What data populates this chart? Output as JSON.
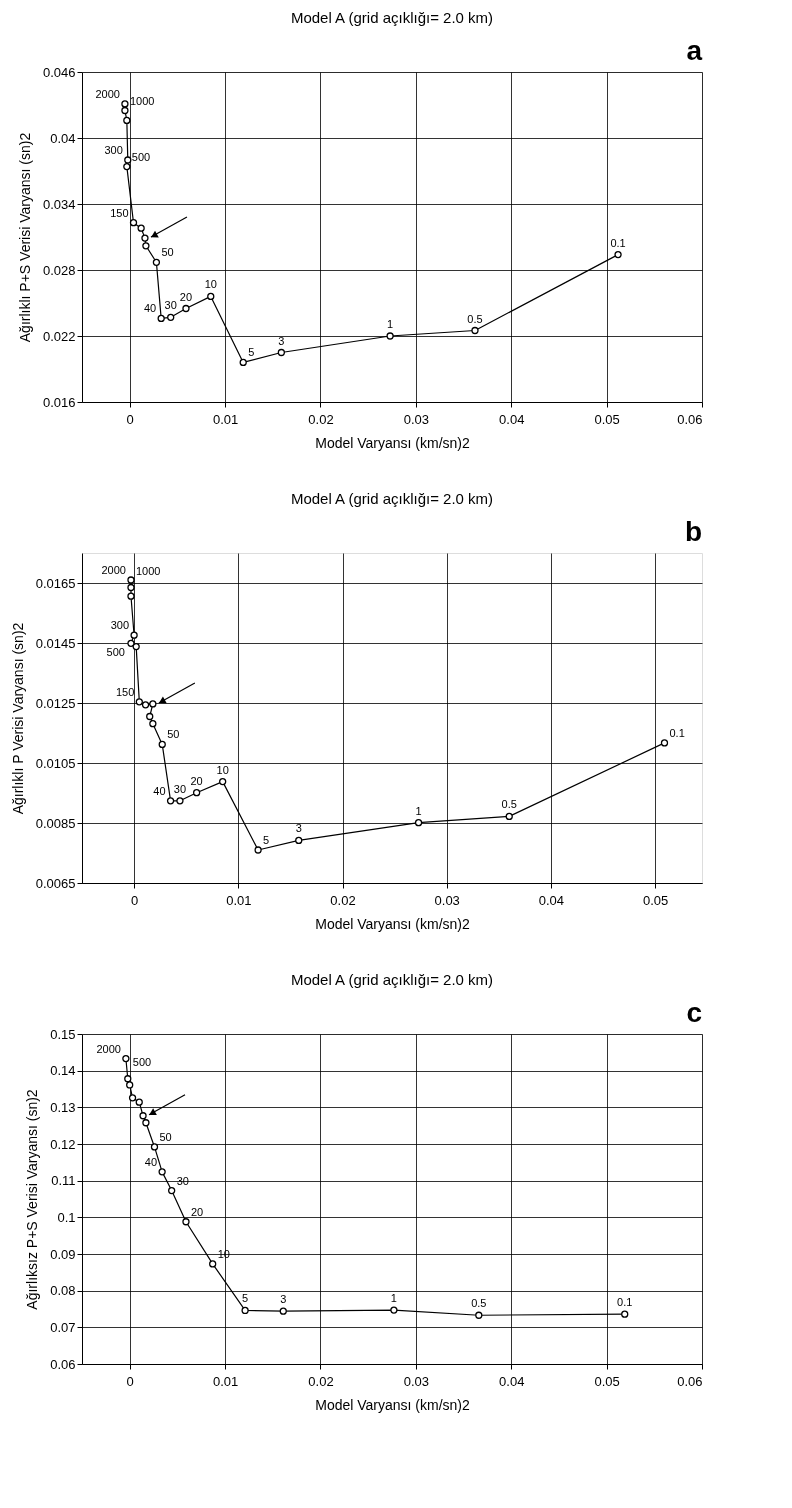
{
  "chart_data": [
    {
      "type": "line",
      "title": "Model A (grid açıklığı= 2.0 km)",
      "xlabel": "Model Varyansı (km/sn)2",
      "ylabel": "Ağırlıklı P+S Verisi Varyansı (sn)2",
      "series": [
        {
          "color": "#000000",
          "x": [
            -0.0005,
            -0.0005,
            -0.0003,
            -0.0002,
            -0.0003,
            0.0004,
            0.0012,
            0.0016,
            0.0017,
            0.0028,
            0.0033,
            0.0043,
            0.0059,
            0.0085,
            0.0119,
            0.0159,
            0.0273,
            0.0362,
            0.0512
          ],
          "values": [
            0.0431,
            0.0425,
            0.0416,
            0.038,
            0.0374,
            0.0323,
            0.0318,
            0.0309,
            0.0302,
            0.0287,
            0.0236,
            0.0237,
            0.0245,
            0.0256,
            0.0196,
            0.0205,
            0.022,
            0.0225,
            0.0294
          ]
        }
      ],
      "xlim": [
        -0.005,
        0.06
      ],
      "xticks": [
        0,
        0.01,
        0.02,
        0.03,
        0.04,
        0.05,
        0.06
      ],
      "ylim": [
        0.016,
        0.046
      ],
      "yticks": [
        0.016,
        0.022,
        0.028,
        0.034,
        0.04,
        0.046
      ],
      "grid": true,
      "marker": "circle",
      "line_style": "solid",
      "annotations": [
        "a",
        {
          "text": "2000",
          "x": -0.0005,
          "y": 0.0431
        },
        {
          "text": "1000",
          "x": -0.0005,
          "y": 0.0425
        },
        {
          "text": "300",
          "x": -0.0002,
          "y": 0.038
        },
        {
          "text": "500",
          "x": -0.0003,
          "y": 0.0374
        },
        {
          "text": "150",
          "x": 0.0004,
          "y": 0.0323
        },
        {
          "text": "50",
          "x": 0.0028,
          "y": 0.0287
        },
        {
          "text": "40",
          "x": 0.0033,
          "y": 0.0236
        },
        {
          "text": "30",
          "x": 0.0043,
          "y": 0.0237
        },
        {
          "text": "20",
          "x": 0.0059,
          "y": 0.0245
        },
        {
          "text": "10",
          "x": 0.0085,
          "y": 0.0256
        },
        {
          "text": "5",
          "x": 0.0119,
          "y": 0.0196
        },
        {
          "text": "3",
          "x": 0.0159,
          "y": 0.0205
        },
        {
          "text": "1",
          "x": 0.0273,
          "y": 0.022
        },
        {
          "text": "0.5",
          "x": 0.0362,
          "y": 0.0225
        },
        {
          "text": "0.1",
          "x": 0.0512,
          "y": 0.0294
        }
      ]
    },
    {
      "type": "line",
      "title": "Model A (grid açıklığı= 2.0 km)",
      "xlabel": "Model Varyansı (km/sn)2",
      "ylabel": "Ağırlıklı P Verisi Varyansı (sn)2",
      "series": [
        {
          "color": "#000000",
          "x": [
            -0.0003,
            -0.0003,
            -0.0003,
            0.0,
            -0.0003,
            0.0002,
            0.0005,
            0.0011,
            0.0018,
            0.0015,
            0.0018,
            0.0027,
            0.0035,
            0.0044,
            0.006,
            0.0085,
            0.0119,
            0.0158,
            0.0273,
            0.036,
            0.0509
          ],
          "values": [
            0.0166,
            0.01635,
            0.01606,
            0.01476,
            0.01449,
            0.01438,
            0.01254,
            0.01244,
            0.01247,
            0.01205,
            0.01181,
            0.01112,
            0.00924,
            0.00924,
            0.00951,
            0.00988,
            0.0076,
            0.00792,
            0.00851,
            0.00872,
            0.01117
          ]
        }
      ],
      "xlim": [
        -0.005,
        0.0545
      ],
      "xticks": [
        0,
        0.01,
        0.02,
        0.03,
        0.04,
        0.05
      ],
      "ylim": [
        0.0065,
        0.0175
      ],
      "yticks": [
        0.0065,
        0.0085,
        0.0105,
        0.0125,
        0.0145,
        0.0165
      ],
      "grid": true,
      "marker": "circle",
      "line_style": "solid",
      "annotations": [
        "b",
        {
          "text": "2000",
          "x": -0.0003,
          "y": 0.0166
        },
        {
          "text": "1000",
          "x": -0.0003,
          "y": 0.01635
        },
        {
          "text": "300",
          "x": 0.0,
          "y": 0.01476
        },
        {
          "text": "500",
          "x": -0.0003,
          "y": 0.01449
        },
        {
          "text": "150",
          "x": 0.0005,
          "y": 0.01254
        },
        {
          "text": "50",
          "x": 0.0027,
          "y": 0.01112
        },
        {
          "text": "40",
          "x": 0.0035,
          "y": 0.00924
        },
        {
          "text": "30",
          "x": 0.0044,
          "y": 0.00924
        },
        {
          "text": "20",
          "x": 0.006,
          "y": 0.00951
        },
        {
          "text": "10",
          "x": 0.0085,
          "y": 0.00988
        },
        {
          "text": "5",
          "x": 0.0119,
          "y": 0.0076
        },
        {
          "text": "3",
          "x": 0.0158,
          "y": 0.00792
        },
        {
          "text": "1",
          "x": 0.0273,
          "y": 0.00851
        },
        {
          "text": "0.5",
          "x": 0.036,
          "y": 0.00872
        },
        {
          "text": "0.1",
          "x": 0.0509,
          "y": 0.01117
        }
      ]
    },
    {
      "type": "line",
      "title": "Model A (grid açıklığı= 2.0 km)",
      "xlabel": "Model Varyansı (km/sn)2",
      "ylabel": "Ağırlıksız P+S Verisi Varyansı (sn)2",
      "series": [
        {
          "color": "#000000",
          "x": [
            -0.0004,
            -0.0002,
            0.0,
            0.0003,
            0.001,
            0.0014,
            0.0017,
            0.0026,
            0.0034,
            0.0044,
            0.0059,
            0.0087,
            0.0121,
            0.0161,
            0.0277,
            0.0366,
            0.0519
          ],
          "values": [
            0.1433,
            0.1378,
            0.1361,
            0.1326,
            0.1314,
            0.1277,
            0.1258,
            0.1192,
            0.1124,
            0.1073,
            0.0988,
            0.0873,
            0.0746,
            0.0744,
            0.0747,
            0.0733,
            0.0736
          ]
        }
      ],
      "xlim": [
        -0.005,
        0.06
      ],
      "xticks": [
        0,
        0.01,
        0.02,
        0.03,
        0.04,
        0.05,
        0.06
      ],
      "ylim": [
        0.06,
        0.15
      ],
      "yticks": [
        0.06,
        0.07,
        0.08,
        0.09,
        0.1,
        0.11,
        0.12,
        0.13,
        0.14,
        0.15
      ],
      "grid": true,
      "marker": "circle",
      "line_style": "solid",
      "annotations": [
        "c",
        {
          "text": "2000",
          "x": -0.0004,
          "y": 0.1433
        },
        {
          "text": "500",
          "x": -0.0002,
          "y": 0.1378
        },
        {
          "text": "50",
          "x": 0.0026,
          "y": 0.1192
        },
        {
          "text": "40",
          "x": 0.0034,
          "y": 0.1124
        },
        {
          "text": "30",
          "x": 0.0044,
          "y": 0.1073
        },
        {
          "text": "20",
          "x": 0.0059,
          "y": 0.0988
        },
        {
          "text": "10",
          "x": 0.0087,
          "y": 0.0873
        },
        {
          "text": "5",
          "x": 0.0121,
          "y": 0.0746
        },
        {
          "text": "3",
          "x": 0.0161,
          "y": 0.0744
        },
        {
          "text": "1",
          "x": 0.0277,
          "y": 0.0747
        },
        {
          "text": "0.5",
          "x": 0.0366,
          "y": 0.0733
        },
        {
          "text": "0.1",
          "x": 0.0519,
          "y": 0.0736
        }
      ]
    }
  ]
}
